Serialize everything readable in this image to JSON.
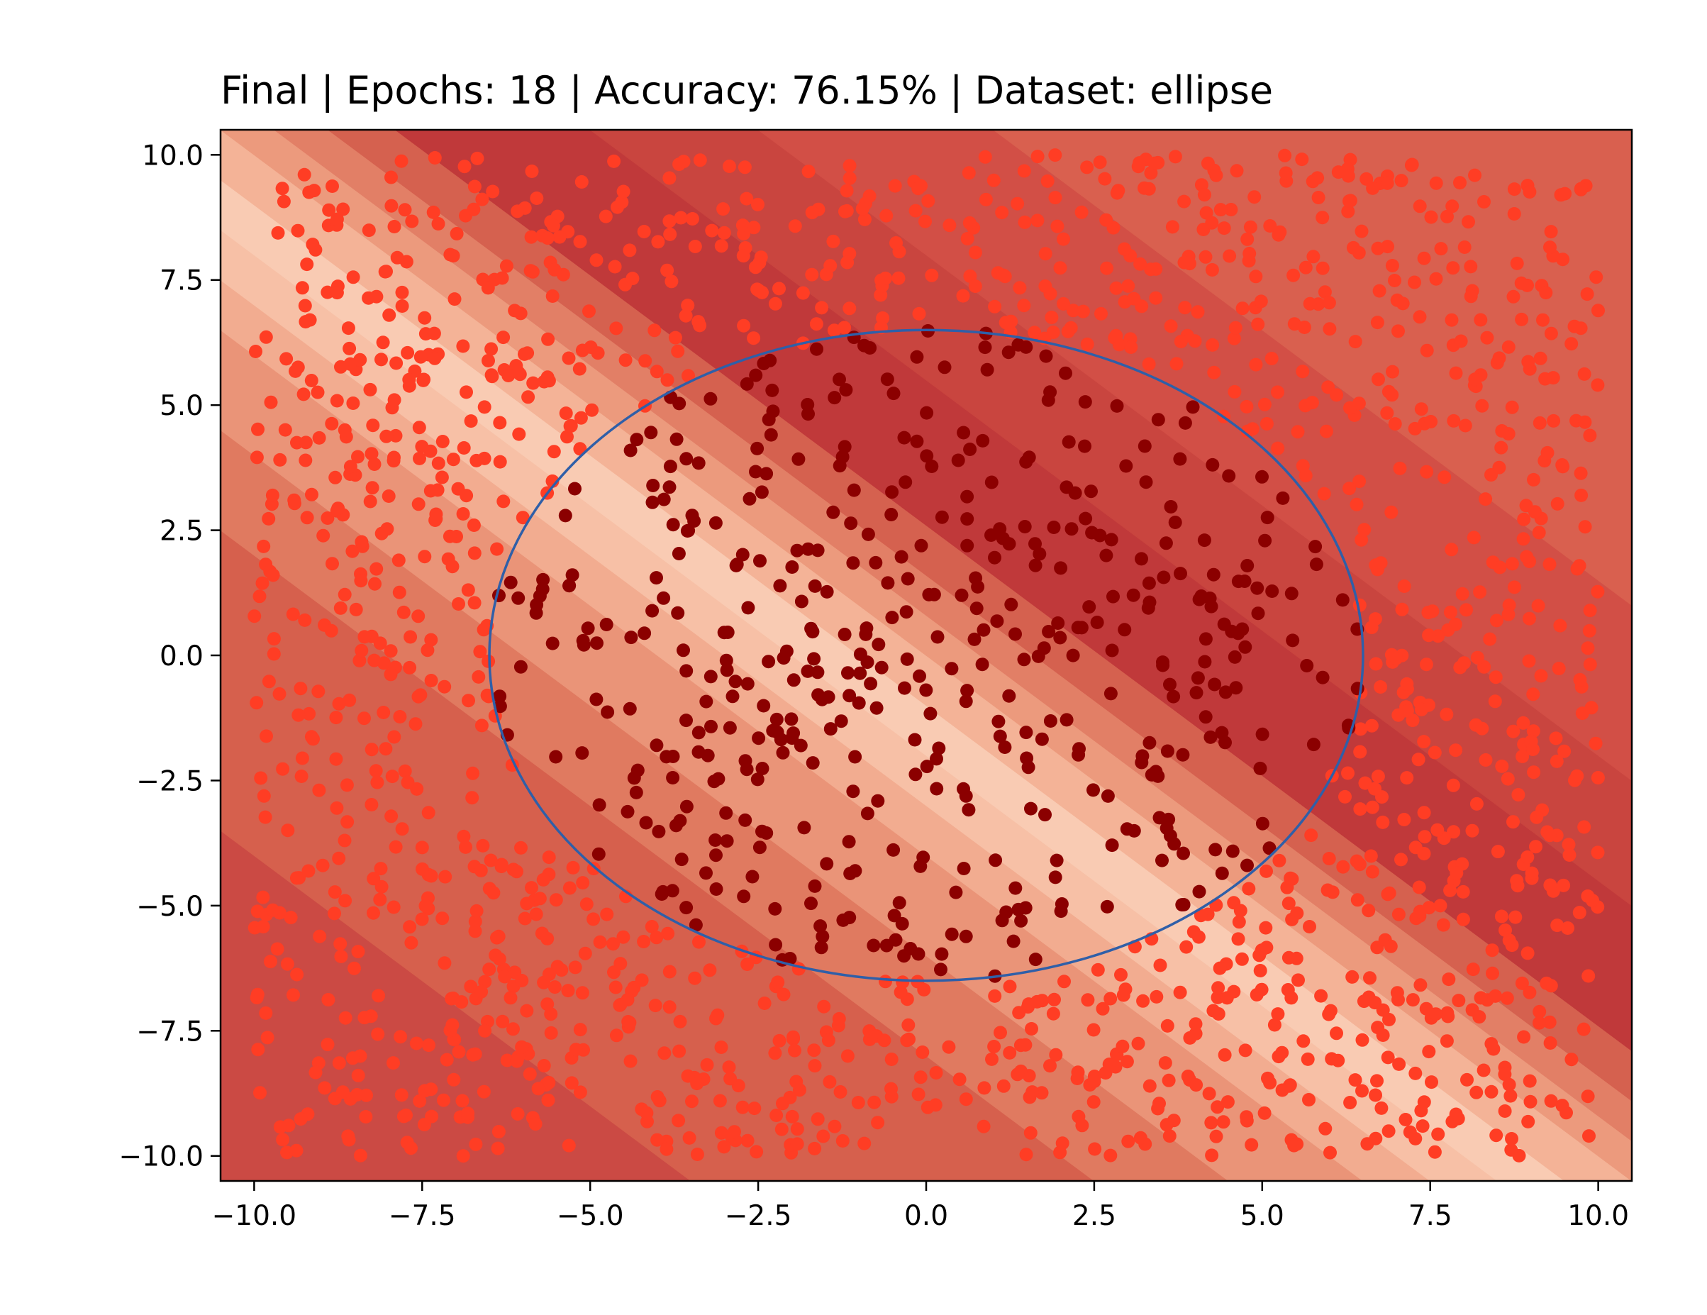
{
  "chart_data": {
    "type": "scatter",
    "title": "Final | Epochs: 18 | Accuracy: 76.15% | Dataset: ellipse",
    "xlabel": "",
    "ylabel": "",
    "xlim": [
      -10.5,
      10.5
    ],
    "ylim": [
      -10.5,
      10.5
    ],
    "x_ticks": [
      -10.0,
      -7.5,
      -5.0,
      -2.5,
      0.0,
      2.5,
      5.0,
      7.5,
      10.0
    ],
    "y_ticks": [
      -10.0,
      -7.5,
      -5.0,
      -2.5,
      0.0,
      2.5,
      5.0,
      7.5,
      10.0
    ],
    "x_tick_labels": [
      "−10.0",
      "−7.5",
      "−5.0",
      "−2.5",
      "0.0",
      "2.5",
      "5.0",
      "7.5",
      "10.0"
    ],
    "y_tick_labels": [
      "−10.0",
      "−7.5",
      "−5.0",
      "−2.5",
      "0.0",
      "2.5",
      "5.0",
      "7.5",
      "10.0"
    ],
    "grid": false,
    "legend": "none",
    "boundary_circle": {
      "center": [
        0,
        0
      ],
      "radius": 6.5,
      "color": "#2f5fa8"
    },
    "decision_surface": {
      "colormap": "Reds",
      "orientation": "diagonal bands along x + y = c",
      "bands": [
        {
          "c_from": -21.0,
          "c_to": -14.0,
          "color": "#cb4a44"
        },
        {
          "c_from": -14.0,
          "c_to": -8.0,
          "color": "#d6604d"
        },
        {
          "c_from": -8.0,
          "c_to": -6.0,
          "color": "#e07a60"
        },
        {
          "c_from": -6.0,
          "c_to": -4.0,
          "color": "#ea9478"
        },
        {
          "c_from": -4.0,
          "c_to": -3.0,
          "color": "#f2ac90"
        },
        {
          "c_from": -3.0,
          "c_to": -2.0,
          "color": "#f7c0a6"
        },
        {
          "c_from": -2.0,
          "c_to": -1.0,
          "color": "#f9cbb3"
        },
        {
          "c_from": -1.0,
          "c_to": 0.0,
          "color": "#f4b397"
        },
        {
          "c_from": 0.0,
          "c_to": 0.8,
          "color": "#ec9a7d"
        },
        {
          "c_from": 0.8,
          "c_to": 1.6,
          "color": "#e27f66"
        },
        {
          "c_from": 1.6,
          "c_to": 2.6,
          "color": "#d5614f"
        },
        {
          "c_from": 2.6,
          "c_to": 5.5,
          "color": "#c0393a"
        },
        {
          "c_from": 5.5,
          "c_to": 8.0,
          "color": "#c9453f"
        },
        {
          "c_from": 8.0,
          "c_to": 11.5,
          "color": "#d24f46"
        },
        {
          "c_from": 11.5,
          "c_to": 21.0,
          "color": "#d9604f"
        }
      ]
    },
    "series": [
      {
        "class": "outside",
        "color": "#ff3d24",
        "count": 1530,
        "region": "x² + y² > 6.5², within [-10, 10]"
      },
      {
        "class": "inside",
        "color": "#8b0000",
        "count": 470,
        "region": "x² + y² ≤ 6.5²"
      }
    ],
    "colors": {
      "outside_points": "#ff3d24",
      "inside_points": "#8b0000",
      "circle": "#2f5fa8"
    }
  }
}
